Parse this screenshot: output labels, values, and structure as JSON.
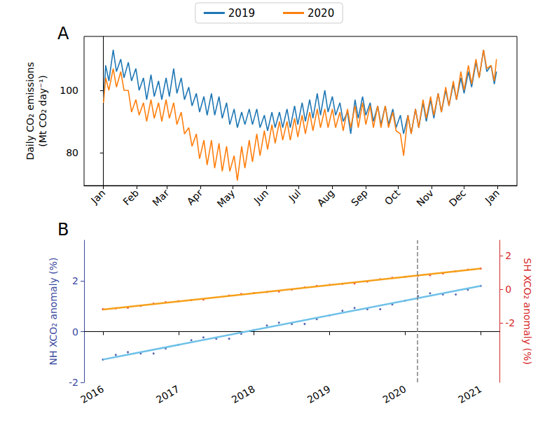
{
  "chart_data": [
    {
      "type": "line",
      "panel_label": "A",
      "y_label": "Daily CO₂ emissions\n(Mt CO₂ day⁻¹)",
      "xlim": [
        -18,
        383
      ],
      "xticks": [
        {
          "value": 0,
          "label": "Jan"
        },
        {
          "value": 31,
          "label": "Feb"
        },
        {
          "value": 59,
          "label": "Mar"
        },
        {
          "value": 90,
          "label": "Apr"
        },
        {
          "value": 120,
          "label": "May"
        },
        {
          "value": 151,
          "label": "Jun"
        },
        {
          "value": 181,
          "label": "Jul"
        },
        {
          "value": 212,
          "label": "Aug"
        },
        {
          "value": 243,
          "label": "Sep"
        },
        {
          "value": 273,
          "label": "Oct"
        },
        {
          "value": 304,
          "label": "Nov"
        },
        {
          "value": 334,
          "label": "Dec"
        },
        {
          "value": 365,
          "label": "Jan"
        }
      ],
      "ylim": [
        69.4,
        117.3
      ],
      "yticks": [
        80,
        100
      ],
      "grid": false,
      "legend": "top",
      "x": [
        0,
        2,
        5,
        9,
        12,
        16,
        19,
        23,
        26,
        30,
        33,
        37,
        40,
        44,
        47,
        51,
        54,
        58,
        61,
        65,
        68,
        72,
        75,
        79,
        82,
        86,
        89,
        93,
        96,
        100,
        103,
        107,
        110,
        114,
        117,
        121,
        124,
        128,
        131,
        135,
        138,
        142,
        145,
        149,
        152,
        156,
        159,
        163,
        166,
        170,
        173,
        177,
        180,
        184,
        187,
        191,
        194,
        198,
        201,
        205,
        208,
        212,
        215,
        219,
        222,
        226,
        229,
        233,
        236,
        240,
        243,
        247,
        250,
        254,
        257,
        261,
        264,
        268,
        271,
        275,
        278,
        282,
        285,
        289,
        292,
        296,
        299,
        303,
        306,
        310,
        313,
        317,
        320,
        324,
        327,
        331,
        334,
        338,
        341,
        345,
        348,
        352,
        355,
        359,
        362,
        364
      ],
      "series": [
        {
          "name": "2019",
          "color": "#1f77b4",
          "values": [
            97,
            108,
            103,
            113,
            106,
            110,
            104,
            109,
            103,
            107,
            100,
            104,
            97,
            105,
            98,
            103,
            97,
            104,
            98,
            107,
            99,
            104,
            97,
            101,
            95,
            99,
            93,
            98,
            92,
            99,
            92,
            98,
            91,
            96,
            89,
            94,
            88,
            93,
            89,
            94,
            89,
            94,
            88,
            92,
            87,
            93,
            88,
            93,
            88,
            94,
            88,
            95,
            89,
            96,
            90,
            97,
            91,
            99,
            92,
            100,
            93,
            98,
            92,
            96,
            90,
            93,
            86,
            97,
            91,
            98,
            92,
            96,
            90,
            95,
            89,
            95,
            89,
            94,
            88,
            92,
            86,
            92,
            86,
            94,
            88,
            96,
            90,
            97,
            91,
            99,
            93,
            100,
            95,
            102,
            97,
            104,
            99,
            106,
            101,
            109,
            104,
            113,
            106,
            108,
            102,
            106
          ]
        },
        {
          "name": "2020",
          "color": "#ff7f0e",
          "values": [
            96,
            104,
            100,
            107,
            101,
            106,
            100,
            100,
            93,
            97,
            92,
            96,
            90,
            97,
            91,
            96,
            90,
            97,
            91,
            96,
            89,
            93,
            86,
            88,
            82,
            86,
            78,
            84,
            76,
            84,
            75,
            83,
            74,
            82,
            74,
            79,
            71,
            82,
            75,
            84,
            77,
            86,
            79,
            87,
            81,
            89,
            83,
            90,
            84,
            90,
            84,
            91,
            85,
            92,
            86,
            93,
            87,
            94,
            88,
            94,
            88,
            94,
            88,
            93,
            87,
            94,
            88,
            95,
            88,
            96,
            89,
            95,
            88,
            95,
            88,
            95,
            88,
            93,
            87,
            86,
            79,
            92,
            86,
            94,
            88,
            97,
            91,
            98,
            92,
            99,
            93,
            101,
            95,
            103,
            97,
            106,
            100,
            108,
            102,
            110,
            104,
            113,
            107,
            108,
            103,
            110
          ]
        }
      ]
    },
    {
      "type": "scatter",
      "panel_label": "B",
      "y_label": "NH XCO₂ anomaly (%)",
      "y2_label": "SH XCO₂ anomaly (%)",
      "xlim": [
        2015.75,
        2021.25
      ],
      "xticks": [
        2016,
        2017,
        2018,
        2019,
        2020,
        2021
      ],
      "ylim": [
        -2,
        3.6
      ],
      "yticks": [
        -2,
        0,
        2
      ],
      "y2lim": [
        -5.5,
        2.9
      ],
      "y2ticks": [
        -2,
        0,
        2
      ],
      "grid": false,
      "x": [
        2016,
        2016.17,
        2016.33,
        2016.5,
        2016.67,
        2016.83,
        2017,
        2017.17,
        2017.33,
        2017.5,
        2017.67,
        2017.83,
        2018,
        2018.17,
        2018.33,
        2018.5,
        2018.67,
        2018.83,
        2019,
        2019.17,
        2019.33,
        2019.5,
        2019.67,
        2019.83,
        2020,
        2020.17,
        2020.33,
        2020.5,
        2020.67,
        2020.83,
        2021
      ],
      "series": [
        {
          "color": "#2c3e9c",
          "marker": "circle",
          "values": [
            -1.1,
            -0.92,
            -0.81,
            -0.86,
            -0.86,
            -0.67,
            -0.52,
            -0.34,
            -0.23,
            -0.28,
            -0.28,
            -0.09,
            0.06,
            0.24,
            0.35,
            0.3,
            0.3,
            0.49,
            0.64,
            0.82,
            0.93,
            0.88,
            0.88,
            1.07,
            1.22,
            1.4,
            1.51,
            1.46,
            1.46,
            1.65,
            1.8
          ]
        },
        {
          "color": "#e31a1c",
          "marker": "circle",
          "axis": "y2",
          "values": [
            -1.18,
            -1.12,
            -1.09,
            -0.98,
            -0.85,
            -0.76,
            -0.7,
            -0.64,
            -0.61,
            null,
            -0.37,
            -0.28,
            -0.22,
            -0.16,
            -0.13,
            -0.02,
            0.11,
            0.2,
            0.26,
            0.32,
            0.35,
            0.46,
            0.59,
            0.68,
            0.74,
            0.8,
            0.83,
            0.94,
            1.07,
            1.16,
            1.22
          ]
        },
        {
          "type": "line",
          "color": "#6ec1e8",
          "line_style": "solid",
          "x": [
            2016,
            2021
          ],
          "values": [
            -1.1,
            1.8
          ]
        },
        {
          "type": "line",
          "color": "#f6a01a",
          "line_style": "solid",
          "axis": "y2",
          "x": [
            2016,
            2021
          ],
          "values": [
            -1.2,
            1.22
          ]
        }
      ],
      "vlines": [
        {
          "x": 2020.16,
          "color": "#808080",
          "line_style": "dashed"
        }
      ]
    }
  ]
}
